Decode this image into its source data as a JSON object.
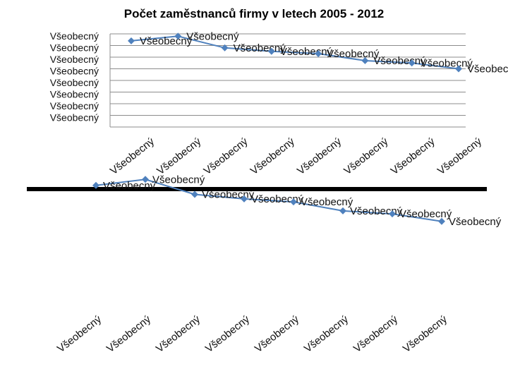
{
  "title": "Počet zaměstnanců firmy v letech 2005 - 2012",
  "placeholder_label": "Všeobecný",
  "chart_data": [
    {
      "type": "line",
      "title": "Počet zaměstnanců firmy v letech 2005 - 2012",
      "categories": [
        "Všeobecný",
        "Všeobecný",
        "Všeobecný",
        "Všeobecný",
        "Všeobecný",
        "Všeobecný",
        "Všeobecný",
        "Všeobecný"
      ],
      "y_tick_labels": [
        "Všeobecný",
        "Všeobecný",
        "Všeobecný",
        "Všeobecný",
        "Všeobecný",
        "Všeobecný",
        "Všeobecný",
        "Všeobecný"
      ],
      "values": [
        7.4,
        7.8,
        6.8,
        6.5,
        6.3,
        5.7,
        5.5,
        5.0
      ],
      "data_labels": [
        "Všeobecný",
        "Všeobecný",
        "Všeobecný",
        "Všeobecný",
        "Všeobecný",
        "Všeobecný",
        "Všeobecný",
        "Všeobecný"
      ],
      "ylim": [
        0,
        8
      ],
      "grid": true,
      "color": "#4f81bd"
    },
    {
      "type": "line",
      "categories": [
        "Všeobecný",
        "Všeobecný",
        "Všeobecný",
        "Všeobecný",
        "Všeobecný",
        "Všeobecný",
        "Všeobecný",
        "Všeobecný"
      ],
      "values": [
        7.4,
        7.8,
        6.8,
        6.5,
        6.3,
        5.7,
        5.5,
        5.0
      ],
      "data_labels": [
        "Všeobecný",
        "Všeobecný",
        "Všeobecný",
        "Všeobecný",
        "Všeobecný",
        "Všeobecný",
        "Všeobecný",
        "Všeobecný"
      ],
      "grid": false,
      "color": "#4f81bd"
    }
  ]
}
